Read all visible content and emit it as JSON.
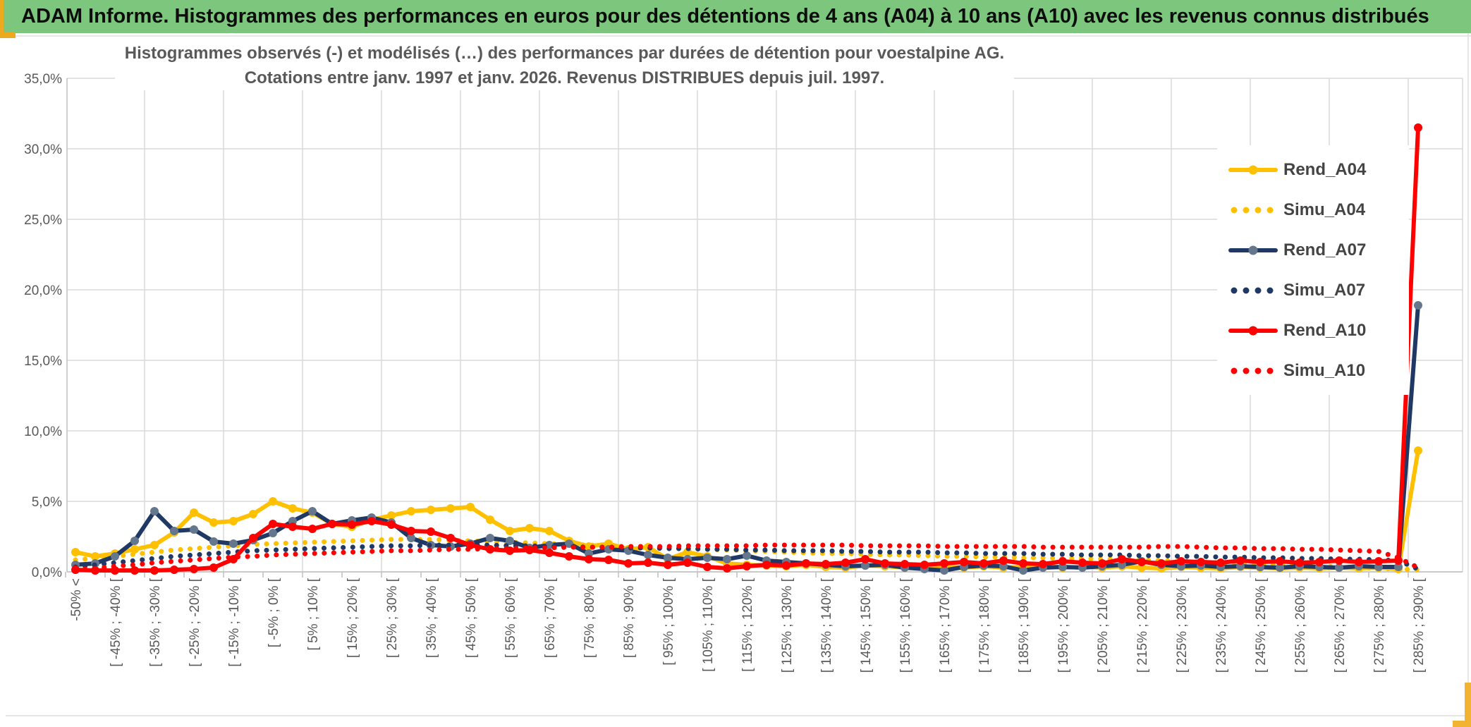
{
  "header": {
    "title": "ADAM Informe. Histogrammes des performances en euros pour des détentions de 4 ans (A04) à 10 ans (A10) avec les revenus connus distribués",
    "bar_color": "#7CC77D",
    "accent_gold": "#EDAA1F"
  },
  "chart_data": {
    "type": "line",
    "title_lines": [
      "Histogrammes observés (-) et modélisés (…) des performances par durées de détention pour voestalpine AG.",
      "Cotations entre janv. 1997 et janv. 2026. Revenus DISTRIBUES depuis juil. 1997."
    ],
    "grid": true,
    "legend_position": "right",
    "y_axis": {
      "min": 0,
      "max": 35,
      "step": 5,
      "tick_labels": [
        "0,0%",
        "5,0%",
        "10,0%",
        "15,0%",
        "20,0%",
        "25,0%",
        "30,0%",
        "35,0%"
      ]
    },
    "x_axis": {
      "bin_count": 69,
      "bin_width_pct": 5,
      "labels": [
        {
          "bin": 1,
          "text": "-50% <"
        },
        {
          "bin": 3,
          "text": "[ -45% ; -40% ["
        },
        {
          "bin": 5,
          "text": "[ -35% ; -30% ["
        },
        {
          "bin": 7,
          "text": "[ -25% ; -20% ["
        },
        {
          "bin": 9,
          "text": "[ -15% ; -10% ["
        },
        {
          "bin": 11,
          "text": "[ -5% ; 0% ["
        },
        {
          "bin": 13,
          "text": "[ 5% ; 10% ["
        },
        {
          "bin": 15,
          "text": "[ 15% ; 20% ["
        },
        {
          "bin": 17,
          "text": "[ 25% ; 30% ["
        },
        {
          "bin": 19,
          "text": "[ 35% ; 40% ["
        },
        {
          "bin": 21,
          "text": "[ 45% ; 50% ["
        },
        {
          "bin": 23,
          "text": "[ 55% ; 60% ["
        },
        {
          "bin": 25,
          "text": "[ 65% ; 70% ["
        },
        {
          "bin": 27,
          "text": "[ 75% ; 80% ["
        },
        {
          "bin": 29,
          "text": "[ 85% ; 90% ["
        },
        {
          "bin": 31,
          "text": "[ 95% ; 100% ["
        },
        {
          "bin": 33,
          "text": "[ 105% ; 110% ["
        },
        {
          "bin": 35,
          "text": "[ 115% ; 120% ["
        },
        {
          "bin": 37,
          "text": "[ 125% ; 130% ["
        },
        {
          "bin": 39,
          "text": "[ 135% ; 140% ["
        },
        {
          "bin": 41,
          "text": "[ 145% ; 150% ["
        },
        {
          "bin": 43,
          "text": "[ 155% ; 160% ["
        },
        {
          "bin": 45,
          "text": "[ 165% ; 170% ["
        },
        {
          "bin": 47,
          "text": "[ 175% ; 180% ["
        },
        {
          "bin": 49,
          "text": "[ 185% ; 190% ["
        },
        {
          "bin": 51,
          "text": "[ 195% ; 200% ["
        },
        {
          "bin": 53,
          "text": "[ 205% ; 210% ["
        },
        {
          "bin": 55,
          "text": "[ 215% ; 220% ["
        },
        {
          "bin": 57,
          "text": "[ 225% ; 230% ["
        },
        {
          "bin": 59,
          "text": "[ 235% ; 240% ["
        },
        {
          "bin": 61,
          "text": "[ 245% ; 250% ["
        },
        {
          "bin": 63,
          "text": "[ 255% ; 260% ["
        },
        {
          "bin": 65,
          "text": "[ 265% ; 270% ["
        },
        {
          "bin": 67,
          "text": "[ 275% ; 280% ["
        },
        {
          "bin": 69,
          "text": "[ 285% ; 290% ["
        }
      ]
    },
    "series": [
      {
        "name": "Rend_A04",
        "style": "solid",
        "color": "#FFC000",
        "marker_color": "#FFC000",
        "values": [
          1.4,
          1.1,
          1.3,
          1.6,
          1.9,
          2.8,
          4.2,
          3.5,
          3.6,
          4.1,
          5.0,
          4.5,
          4.2,
          3.4,
          3.2,
          3.7,
          4.0,
          4.3,
          4.4,
          4.5,
          4.6,
          3.7,
          2.9,
          3.1,
          2.9,
          2.2,
          1.8,
          2.0,
          1.6,
          1.75,
          0.9,
          1.4,
          1.1,
          0.6,
          0.5,
          0.45,
          0.4,
          0.5,
          0.35,
          0.3,
          0.45,
          0.4,
          0.3,
          0.45,
          0.35,
          0.3,
          0.4,
          0.3,
          0.35,
          0.45,
          0.3,
          0.35,
          0.3,
          0.4,
          0.3,
          0.25,
          0.35,
          0.3,
          0.25,
          0.35,
          0.3,
          0.25,
          0.3,
          0.25,
          0.3,
          0.25,
          0.3,
          0.2,
          8.6
        ]
      },
      {
        "name": "Simu_A04",
        "style": "dotted",
        "color": "#FFC000",
        "marker_color": "#FFC000",
        "values": [
          0.85,
          0.95,
          1.1,
          1.25,
          1.4,
          1.55,
          1.65,
          1.75,
          1.85,
          1.95,
          2.0,
          2.05,
          2.1,
          2.15,
          2.2,
          2.25,
          2.3,
          2.3,
          2.3,
          2.25,
          2.2,
          2.15,
          2.1,
          2.05,
          2.0,
          1.95,
          1.9,
          1.85,
          1.8,
          1.75,
          1.7,
          1.65,
          1.6,
          1.55,
          1.5,
          1.45,
          1.4,
          1.35,
          1.3,
          1.3,
          1.25,
          1.2,
          1.2,
          1.15,
          1.1,
          1.1,
          1.05,
          1.05,
          1.0,
          1.0,
          0.95,
          0.95,
          0.9,
          0.9,
          0.85,
          0.8,
          0.75,
          0.7,
          0.65,
          0.6,
          0.55,
          0.5,
          0.45,
          0.4,
          0.35,
          0.3,
          0.25,
          0.2,
          0.15
        ]
      },
      {
        "name": "Rend_A07",
        "style": "solid",
        "color": "#1F3864",
        "marker_color": "#64778C",
        "values": [
          0.5,
          0.6,
          1.1,
          2.2,
          4.3,
          2.9,
          3.0,
          2.15,
          2.0,
          2.25,
          2.75,
          3.6,
          4.3,
          3.4,
          3.65,
          3.85,
          3.5,
          2.4,
          1.9,
          1.8,
          2.0,
          2.4,
          2.2,
          1.7,
          1.9,
          2.0,
          1.3,
          1.6,
          1.5,
          1.2,
          1.0,
          0.9,
          1.0,
          0.9,
          1.15,
          0.8,
          0.7,
          0.6,
          0.5,
          0.4,
          0.45,
          0.5,
          0.3,
          0.2,
          0.1,
          0.35,
          0.45,
          0.4,
          0.1,
          0.3,
          0.35,
          0.3,
          0.4,
          0.5,
          0.75,
          0.5,
          0.4,
          0.45,
          0.35,
          0.4,
          0.35,
          0.3,
          0.4,
          0.35,
          0.3,
          0.4,
          0.35,
          0.35,
          18.9
        ]
      },
      {
        "name": "Simu_A07",
        "style": "dotted",
        "color": "#1F3864",
        "marker_color": "#1F3864",
        "values": [
          0.35,
          0.5,
          0.65,
          0.8,
          0.95,
          1.1,
          1.2,
          1.3,
          1.4,
          1.5,
          1.55,
          1.6,
          1.65,
          1.7,
          1.75,
          1.8,
          1.85,
          1.85,
          1.9,
          1.9,
          1.9,
          1.9,
          1.85,
          1.85,
          1.8,
          1.8,
          1.75,
          1.75,
          1.7,
          1.7,
          1.65,
          1.65,
          1.6,
          1.6,
          1.55,
          1.55,
          1.5,
          1.5,
          1.5,
          1.45,
          1.45,
          1.4,
          1.4,
          1.4,
          1.35,
          1.35,
          1.3,
          1.3,
          1.3,
          1.25,
          1.25,
          1.2,
          1.2,
          1.2,
          1.15,
          1.15,
          1.1,
          1.1,
          1.05,
          1.05,
          1.0,
          1.0,
          0.95,
          0.95,
          0.9,
          0.9,
          0.85,
          0.8,
          0.2
        ]
      },
      {
        "name": "Rend_A10",
        "style": "solid",
        "color": "#FF0000",
        "marker_color": "#FF0000",
        "values": [
          0.15,
          0.1,
          0.1,
          0.1,
          0.1,
          0.15,
          0.2,
          0.3,
          0.9,
          2.4,
          3.4,
          3.2,
          3.05,
          3.4,
          3.35,
          3.6,
          3.35,
          2.9,
          2.85,
          2.4,
          1.9,
          1.6,
          1.5,
          1.55,
          1.35,
          1.1,
          0.9,
          0.85,
          0.6,
          0.65,
          0.5,
          0.65,
          0.35,
          0.25,
          0.4,
          0.5,
          0.45,
          0.6,
          0.55,
          0.65,
          0.9,
          0.6,
          0.55,
          0.5,
          0.6,
          0.7,
          0.6,
          0.8,
          0.6,
          0.55,
          0.75,
          0.65,
          0.6,
          0.9,
          0.7,
          0.6,
          0.75,
          0.7,
          0.65,
          0.8,
          0.7,
          0.75,
          0.65,
          0.7,
          0.8,
          0.7,
          0.75,
          0.8,
          31.5
        ]
      },
      {
        "name": "Simu_A10",
        "style": "dotted",
        "color": "#FF0000",
        "marker_color": "#FF0000",
        "values": [
          0.15,
          0.25,
          0.4,
          0.5,
          0.65,
          0.75,
          0.85,
          0.95,
          1.05,
          1.1,
          1.2,
          1.25,
          1.3,
          1.35,
          1.4,
          1.45,
          1.5,
          1.5,
          1.55,
          1.6,
          1.6,
          1.65,
          1.65,
          1.7,
          1.7,
          1.75,
          1.75,
          1.75,
          1.8,
          1.8,
          1.8,
          1.85,
          1.85,
          1.85,
          1.85,
          1.9,
          1.9,
          1.9,
          1.9,
          1.9,
          1.85,
          1.85,
          1.85,
          1.85,
          1.8,
          1.8,
          1.8,
          1.8,
          1.8,
          1.75,
          1.75,
          1.75,
          1.75,
          1.75,
          1.75,
          1.8,
          1.8,
          1.75,
          1.7,
          1.7,
          1.65,
          1.65,
          1.6,
          1.6,
          1.55,
          1.5,
          1.45,
          1.0,
          0.3
        ]
      }
    ],
    "styles": {
      "gridline_color": "#D9D9D9",
      "axis_color": "#BFBFBF",
      "tick_label_color": "#595959",
      "title_color": "#595959"
    }
  }
}
